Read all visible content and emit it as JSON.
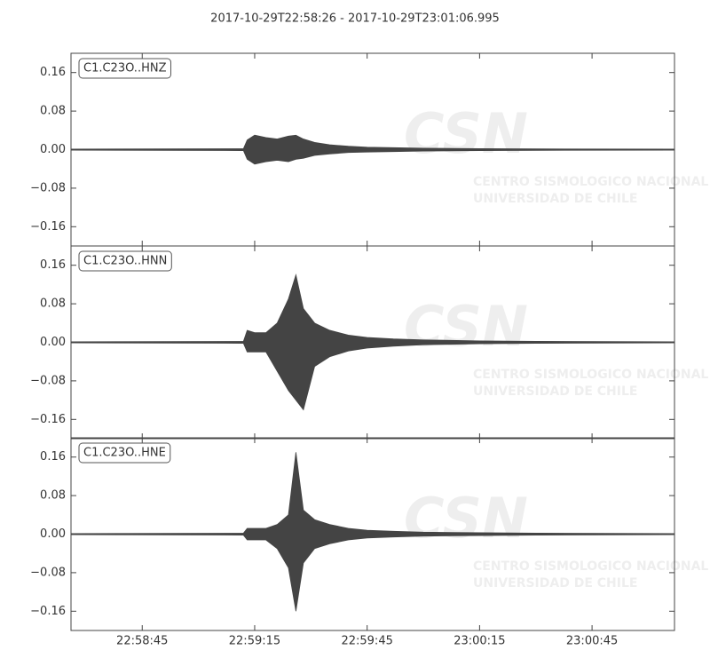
{
  "title": "2017-10-29T22:58:26  -  2017-10-29T23:01:06.995",
  "watermark": [
    "CSN",
    "CENTRO SISMOLOGICO NACIONAL",
    "UNIVERSIDAD DE CHILE"
  ],
  "chart_data": [
    {
      "type": "area",
      "label": "C1.C23O..HNZ",
      "color": "#444444",
      "x": [
        "22:58:26",
        "22:59:12",
        "22:59:13",
        "22:59:15",
        "22:59:18",
        "22:59:21",
        "22:59:24",
        "22:59:26",
        "22:59:28",
        "22:59:31",
        "22:59:35",
        "22:59:40",
        "22:59:45",
        "22:59:52",
        "23:00:00",
        "23:00:15",
        "23:00:30",
        "23:01:06.995"
      ],
      "upper": [
        0.001,
        0.002,
        0.02,
        0.03,
        0.025,
        0.022,
        0.028,
        0.03,
        0.022,
        0.015,
        0.01,
        0.007,
        0.005,
        0.004,
        0.003,
        0.002,
        0.0015,
        0.001
      ],
      "lower": [
        -0.001,
        -0.002,
        -0.02,
        -0.03,
        -0.025,
        -0.022,
        -0.025,
        -0.02,
        -0.018,
        -0.012,
        -0.009,
        -0.006,
        -0.005,
        -0.004,
        -0.003,
        -0.002,
        -0.0015,
        -0.001
      ],
      "xlim": [
        "22:58:26",
        "23:01:06.995"
      ],
      "ylim": [
        -0.2,
        0.2
      ],
      "yticks": [
        {
          "value": -0.16,
          "label": "−0.16"
        },
        {
          "value": -0.08,
          "label": "−0.08"
        },
        {
          "value": 0,
          "label": "0.00"
        },
        {
          "value": 0.08,
          "label": "0.08"
        },
        {
          "value": 0.16,
          "label": "0.16"
        }
      ]
    },
    {
      "type": "area",
      "label": "C1.C23O..HNN",
      "color": "#444444",
      "x": [
        "22:58:26",
        "22:59:12",
        "22:59:13",
        "22:59:15",
        "22:59:18",
        "22:59:21",
        "22:59:24",
        "22:59:26",
        "22:59:28",
        "22:59:31",
        "22:59:35",
        "22:59:40",
        "22:59:45",
        "22:59:52",
        "23:00:00",
        "23:00:15",
        "23:00:30",
        "23:01:06.995"
      ],
      "upper": [
        0.001,
        0.002,
        0.025,
        0.02,
        0.02,
        0.04,
        0.09,
        0.14,
        0.07,
        0.04,
        0.025,
        0.015,
        0.01,
        0.007,
        0.005,
        0.003,
        0.002,
        0.001
      ],
      "lower": [
        -0.001,
        -0.002,
        -0.02,
        -0.02,
        -0.02,
        -0.06,
        -0.1,
        -0.12,
        -0.14,
        -0.05,
        -0.03,
        -0.018,
        -0.012,
        -0.008,
        -0.005,
        -0.003,
        -0.002,
        -0.001
      ],
      "xlim": [
        "22:58:26",
        "23:01:06.995"
      ],
      "ylim": [
        -0.2,
        0.2
      ],
      "yticks": [
        {
          "value": -0.16,
          "label": "−0.16"
        },
        {
          "value": -0.08,
          "label": "−0.08"
        },
        {
          "value": 0,
          "label": "0.00"
        },
        {
          "value": 0.08,
          "label": "0.08"
        },
        {
          "value": 0.16,
          "label": "0.16"
        }
      ]
    },
    {
      "type": "area",
      "label": "C1.C23O..HNE",
      "color": "#444444",
      "x": [
        "22:58:26",
        "22:59:12",
        "22:59:13",
        "22:59:15",
        "22:59:18",
        "22:59:21",
        "22:59:24",
        "22:59:26",
        "22:59:28",
        "22:59:31",
        "22:59:35",
        "22:59:40",
        "22:59:45",
        "22:59:52",
        "23:00:00",
        "23:00:15",
        "23:00:30",
        "23:01:06.995"
      ],
      "upper": [
        0.001,
        0.002,
        0.012,
        0.012,
        0.012,
        0.02,
        0.04,
        0.17,
        0.05,
        0.03,
        0.02,
        0.012,
        0.008,
        0.006,
        0.004,
        0.003,
        0.002,
        0.001
      ],
      "lower": [
        -0.001,
        -0.002,
        -0.012,
        -0.012,
        -0.012,
        -0.03,
        -0.07,
        -0.16,
        -0.06,
        -0.03,
        -0.02,
        -0.012,
        -0.008,
        -0.006,
        -0.004,
        -0.003,
        -0.002,
        -0.001
      ],
      "xlim": [
        "22:58:26",
        "23:01:06.995"
      ],
      "ylim": [
        -0.2,
        0.2
      ],
      "yticks": [
        {
          "value": -0.16,
          "label": "−0.16"
        },
        {
          "value": -0.08,
          "label": "−0.08"
        },
        {
          "value": 0,
          "label": "0.00"
        },
        {
          "value": 0.08,
          "label": "0.08"
        },
        {
          "value": 0.16,
          "label": "0.16"
        }
      ],
      "xticks": [
        "22:58:45",
        "22:59:15",
        "22:59:45",
        "23:00:15",
        "23:00:45"
      ]
    }
  ]
}
